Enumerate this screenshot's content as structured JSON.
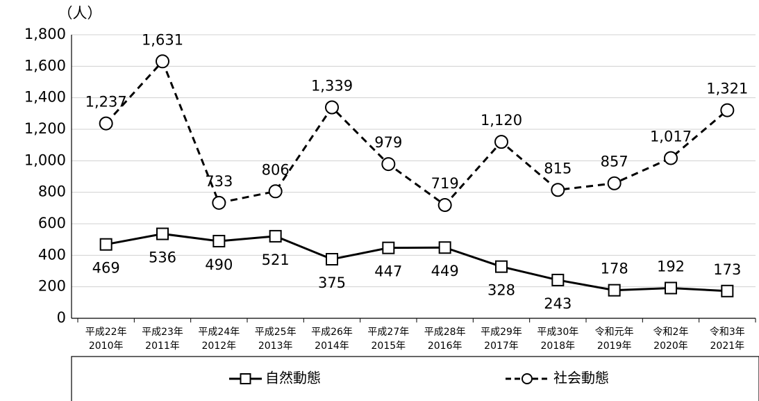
{
  "chart_data": {
    "type": "line",
    "y_unit": "（人）",
    "categories": [
      [
        "平成22年",
        "2010年"
      ],
      [
        "平成23年",
        "2011年"
      ],
      [
        "平成24年",
        "2012年"
      ],
      [
        "平成25年",
        "2013年"
      ],
      [
        "平成26年",
        "2014年"
      ],
      [
        "平成27年",
        "2015年"
      ],
      [
        "平成28年",
        "2016年"
      ],
      [
        "平成29年",
        "2017年"
      ],
      [
        "平成30年",
        "2018年"
      ],
      [
        "令和元年",
        "2019年"
      ],
      [
        "令和2年",
        "2020年"
      ],
      [
        "令和3年",
        "2021年"
      ]
    ],
    "series": [
      {
        "name": "自然動態",
        "color": "#000000",
        "dash": false,
        "marker": "square",
        "values": [
          469,
          536,
          490,
          521,
          375,
          447,
          449,
          328,
          243,
          178,
          192,
          173
        ]
      },
      {
        "name": "社会動態",
        "color": "#000000",
        "dash": true,
        "marker": "circle",
        "values": [
          1237,
          1631,
          733,
          806,
          1339,
          979,
          719,
          1120,
          815,
          857,
          1017,
          1321
        ],
        "value_labels": [
          "1,237",
          "1,631",
          "733",
          "806",
          "1,339",
          "979",
          "719",
          "1,120",
          "815",
          "857",
          "1,017",
          "1,321"
        ]
      }
    ],
    "ylim": [
      0,
      1800
    ],
    "yticks": [
      0,
      200,
      400,
      600,
      800,
      {
        "value": 1000,
        "label": "1,000"
      },
      {
        "value": 1200,
        "label": "1,200"
      },
      {
        "value": 1400,
        "label": "1,400"
      },
      {
        "value": 1600,
        "label": "1,600"
      },
      {
        "value": 1800,
        "label": "1,800"
      }
    ],
    "grid": true,
    "legend": "bottom"
  }
}
